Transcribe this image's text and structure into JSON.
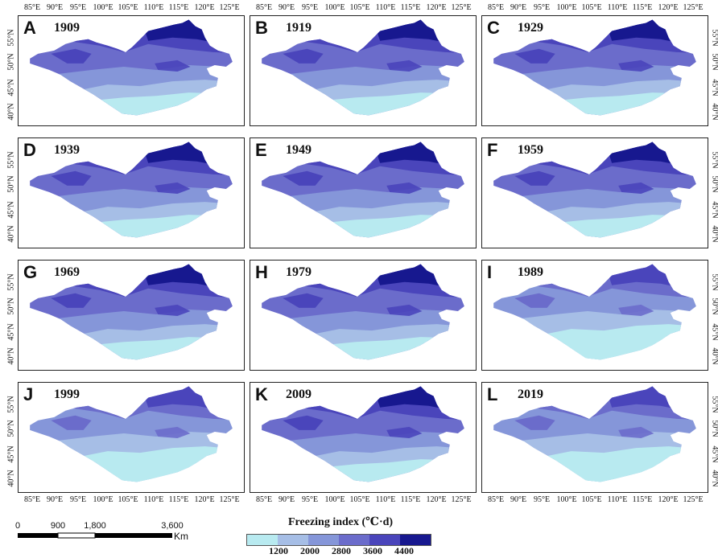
{
  "panels": [
    {
      "letter": "A",
      "year": "1909",
      "shift": 0
    },
    {
      "letter": "B",
      "year": "1919",
      "shift": 0
    },
    {
      "letter": "C",
      "year": "1929",
      "shift": 0
    },
    {
      "letter": "D",
      "year": "1939",
      "shift": 0
    },
    {
      "letter": "E",
      "year": "1949",
      "shift": 0
    },
    {
      "letter": "F",
      "year": "1959",
      "shift": 0
    },
    {
      "letter": "G",
      "year": "1969",
      "shift": 0
    },
    {
      "letter": "H",
      "year": "1979",
      "shift": 0
    },
    {
      "letter": "I",
      "year": "1989",
      "shift": -1
    },
    {
      "letter": "J",
      "year": "1999",
      "shift": -1
    },
    {
      "letter": "K",
      "year": "2009",
      "shift": 0
    },
    {
      "letter": "L",
      "year": "2019",
      "shift": -1
    }
  ],
  "longitude_labels": [
    "85°E",
    "90°E",
    "95°E",
    "100°E",
    "105°E",
    "110°E",
    "115°E",
    "120°E",
    "125°E"
  ],
  "latitude_labels": [
    "55°N",
    "50°N",
    "45°N",
    "40°N"
  ],
  "scale_bar": {
    "labels": [
      "0",
      "900",
      "1,800",
      "3,600"
    ],
    "unit": "Km"
  },
  "legend": {
    "title": "Freezing index (℃·d)",
    "thresholds": [
      "1200",
      "2000",
      "2800",
      "3600",
      "4400"
    ],
    "colors": [
      "#b8eaf0",
      "#a6bee6",
      "#8596d9",
      "#6b6ccb",
      "#4a45bb",
      "#17188f"
    ]
  }
}
